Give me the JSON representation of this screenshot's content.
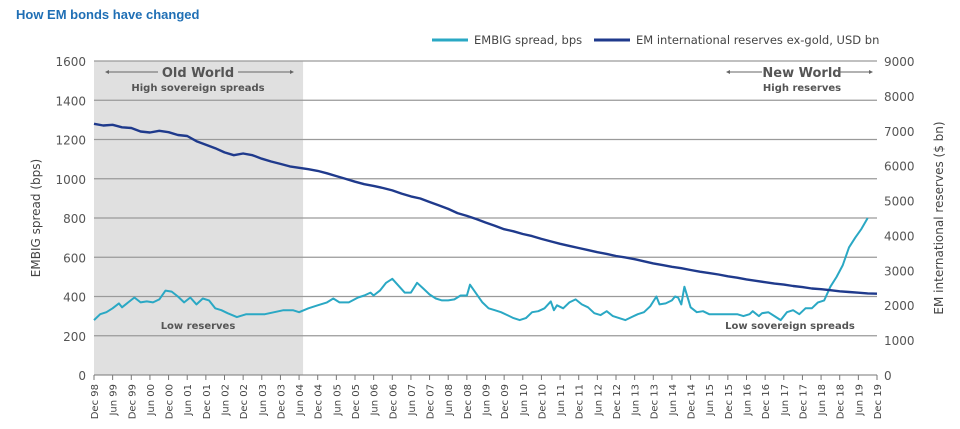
{
  "title": "How EM bonds have changed",
  "chart_data": {
    "type": "line",
    "title": "How EM bonds have changed",
    "xlabel": "",
    "ylabel": "EMBIG spread (bps)",
    "y2label": "EM international reserves ($ bn)",
    "ylim": [
      0,
      1600
    ],
    "y2lim": [
      0,
      9000
    ],
    "yticks": [
      0,
      200,
      400,
      600,
      800,
      1000,
      1200,
      1400,
      1600
    ],
    "y2ticks": [
      0,
      1000,
      2000,
      3000,
      4000,
      5000,
      6000,
      7000,
      8000,
      9000
    ],
    "grid": true,
    "legend_position": "top-right",
    "x_tick_labels": [
      "Dec 98",
      "Jun 99",
      "Dec 99",
      "Jun 00",
      "Dec 00",
      "Jun 01",
      "Dec 01",
      "Jun 02",
      "Dec 02",
      "Jun 03",
      "Dec 03",
      "Jun 04",
      "Dec 04",
      "Jun 05",
      "Dec 05",
      "Jun 06",
      "Dec 06",
      "Jun 07",
      "Dec 07",
      "Jun 08",
      "Dec 08",
      "Jun 09",
      "Dec 09",
      "Jun 10",
      "Dec 10",
      "Jun 11",
      "Dec 11",
      "Jun 12",
      "Dec 12",
      "Jun 13",
      "Dec 13",
      "Jun 14",
      "Dec 14",
      "Jun 15",
      "Dec 15",
      "Jun 16",
      "Dec 16",
      "Jun 17",
      "Dec 17",
      "Jun 18",
      "Dec 18",
      "Jun 19",
      "Dec 19"
    ],
    "x_unit": "months since Dec 98",
    "series": [
      {
        "name": "EMBIG spread, bps",
        "axis": "left",
        "color": "#2aa8c4",
        "points": [
          [
            0,
            280
          ],
          [
            2,
            310
          ],
          [
            4,
            320
          ],
          [
            6,
            340
          ],
          [
            8,
            365
          ],
          [
            9,
            345
          ],
          [
            11,
            370
          ],
          [
            13,
            395
          ],
          [
            15,
            370
          ],
          [
            17,
            375
          ],
          [
            19,
            370
          ],
          [
            21,
            385
          ],
          [
            23,
            430
          ],
          [
            25,
            425
          ],
          [
            27,
            400
          ],
          [
            29,
            370
          ],
          [
            31,
            395
          ],
          [
            33,
            360
          ],
          [
            35,
            390
          ],
          [
            37,
            380
          ],
          [
            39,
            340
          ],
          [
            41,
            330
          ],
          [
            43,
            315
          ],
          [
            46,
            295
          ],
          [
            49,
            310
          ],
          [
            52,
            310
          ],
          [
            55,
            310
          ],
          [
            58,
            320
          ],
          [
            61,
            330
          ],
          [
            64,
            330
          ],
          [
            66,
            320
          ],
          [
            69,
            340
          ],
          [
            72,
            355
          ],
          [
            75,
            370
          ],
          [
            77,
            390
          ],
          [
            79,
            370
          ],
          [
            82,
            370
          ],
          [
            85,
            395
          ],
          [
            87,
            405
          ],
          [
            89,
            420
          ],
          [
            90,
            405
          ],
          [
            92,
            430
          ],
          [
            94,
            470
          ],
          [
            96,
            490
          ],
          [
            98,
            455
          ],
          [
            100,
            420
          ],
          [
            102,
            420
          ],
          [
            104,
            470
          ],
          [
            106,
            440
          ],
          [
            108,
            410
          ],
          [
            110,
            390
          ],
          [
            112,
            380
          ],
          [
            114,
            380
          ],
          [
            116,
            385
          ],
          [
            118,
            405
          ],
          [
            120,
            405
          ],
          [
            121,
            460
          ],
          [
            123,
            415
          ],
          [
            125,
            370
          ],
          [
            127,
            340
          ],
          [
            129,
            330
          ],
          [
            131,
            320
          ],
          [
            133,
            305
          ],
          [
            135,
            290
          ],
          [
            137,
            280
          ],
          [
            139,
            290
          ],
          [
            141,
            320
          ],
          [
            143,
            325
          ],
          [
            145,
            340
          ],
          [
            147,
            375
          ],
          [
            148,
            330
          ],
          [
            149,
            355
          ],
          [
            151,
            340
          ],
          [
            153,
            370
          ],
          [
            155,
            385
          ],
          [
            157,
            360
          ],
          [
            159,
            345
          ],
          [
            161,
            315
          ],
          [
            163,
            305
          ],
          [
            165,
            325
          ],
          [
            167,
            300
          ],
          [
            169,
            290
          ],
          [
            171,
            280
          ],
          [
            173,
            295
          ],
          [
            175,
            310
          ],
          [
            177,
            320
          ],
          [
            179,
            350
          ],
          [
            181,
            400
          ],
          [
            182,
            360
          ],
          [
            184,
            365
          ],
          [
            186,
            380
          ],
          [
            187,
            400
          ],
          [
            188,
            395
          ],
          [
            189,
            360
          ],
          [
            190,
            450
          ],
          [
            192,
            345
          ],
          [
            194,
            320
          ],
          [
            196,
            325
          ],
          [
            198,
            310
          ],
          [
            201,
            310
          ],
          [
            204,
            310
          ],
          [
            207,
            310
          ],
          [
            209,
            300
          ],
          [
            211,
            310
          ],
          [
            212,
            325
          ],
          [
            214,
            300
          ],
          [
            215,
            315
          ],
          [
            217,
            320
          ],
          [
            219,
            300
          ],
          [
            221,
            280
          ],
          [
            223,
            320
          ],
          [
            225,
            330
          ],
          [
            227,
            310
          ],
          [
            229,
            340
          ],
          [
            231,
            340
          ],
          [
            233,
            370
          ],
          [
            235,
            380
          ],
          [
            237,
            450
          ],
          [
            239,
            500
          ],
          [
            241,
            560
          ],
          [
            243,
            650
          ],
          [
            245,
            700
          ],
          [
            247,
            745
          ],
          [
            249,
            800
          ]
        ]
      },
      {
        "name": "EM international reserves ex-gold, USD bn",
        "axis": "right",
        "color": "#1f3a8c",
        "points": [
          [
            0,
            7200
          ],
          [
            3,
            7150
          ],
          [
            6,
            7170
          ],
          [
            9,
            7100
          ],
          [
            12,
            7080
          ],
          [
            15,
            6980
          ],
          [
            18,
            6950
          ],
          [
            21,
            7000
          ],
          [
            24,
            6960
          ],
          [
            27,
            6880
          ],
          [
            30,
            6850
          ],
          [
            33,
            6700
          ],
          [
            36,
            6600
          ],
          [
            39,
            6500
          ],
          [
            42,
            6380
          ],
          [
            45,
            6300
          ],
          [
            48,
            6350
          ],
          [
            51,
            6300
          ],
          [
            54,
            6200
          ],
          [
            57,
            6120
          ],
          [
            60,
            6050
          ],
          [
            63,
            5980
          ],
          [
            66,
            5940
          ],
          [
            69,
            5900
          ],
          [
            72,
            5850
          ],
          [
            75,
            5780
          ],
          [
            78,
            5700
          ],
          [
            81,
            5620
          ],
          [
            84,
            5540
          ],
          [
            87,
            5470
          ],
          [
            90,
            5420
          ],
          [
            93,
            5360
          ],
          [
            96,
            5290
          ],
          [
            99,
            5200
          ],
          [
            102,
            5120
          ],
          [
            105,
            5060
          ],
          [
            108,
            4960
          ],
          [
            111,
            4860
          ],
          [
            114,
            4760
          ],
          [
            117,
            4640
          ],
          [
            120,
            4560
          ],
          [
            123,
            4470
          ],
          [
            126,
            4370
          ],
          [
            129,
            4280
          ],
          [
            132,
            4180
          ],
          [
            135,
            4120
          ],
          [
            138,
            4040
          ],
          [
            141,
            3980
          ],
          [
            144,
            3900
          ],
          [
            147,
            3830
          ],
          [
            150,
            3760
          ],
          [
            153,
            3700
          ],
          [
            156,
            3640
          ],
          [
            159,
            3580
          ],
          [
            162,
            3520
          ],
          [
            165,
            3470
          ],
          [
            168,
            3410
          ],
          [
            171,
            3370
          ],
          [
            174,
            3320
          ],
          [
            177,
            3260
          ],
          [
            180,
            3200
          ],
          [
            183,
            3150
          ],
          [
            186,
            3100
          ],
          [
            189,
            3060
          ],
          [
            192,
            3010
          ],
          [
            195,
            2960
          ],
          [
            198,
            2920
          ],
          [
            201,
            2880
          ],
          [
            204,
            2830
          ],
          [
            207,
            2790
          ],
          [
            210,
            2740
          ],
          [
            213,
            2700
          ],
          [
            216,
            2660
          ],
          [
            219,
            2620
          ],
          [
            222,
            2590
          ],
          [
            225,
            2550
          ],
          [
            228,
            2520
          ],
          [
            231,
            2480
          ],
          [
            234,
            2460
          ],
          [
            237,
            2430
          ],
          [
            240,
            2400
          ],
          [
            243,
            2380
          ],
          [
            246,
            2360
          ],
          [
            249,
            2340
          ],
          [
            252,
            2330
          ]
        ]
      }
    ],
    "annotations": [
      {
        "text": "Old World",
        "subtext": "High sovereign spreads",
        "span": [
          "Dec 98",
          "Jun 04"
        ],
        "shaded": true
      },
      {
        "text": "New World",
        "subtext": "High reserves",
        "span": [
          "Jun 15",
          "Dec 19"
        ],
        "shaded": false
      },
      {
        "text": "Low reserves",
        "position": "inside old-world region, near 230 bps"
      },
      {
        "text": "Low sovereign spreads",
        "position": "right side, near 1300 $bn"
      }
    ]
  },
  "legend": {
    "embig_label": "EMBIG spread, bps",
    "reserves_label": "EM international reserves ex-gold, USD bn"
  },
  "annotations": {
    "old_world": "Old World",
    "old_world_sub": "High sovereign spreads",
    "new_world": "New World",
    "new_world_sub": "High reserves",
    "low_reserves": "Low reserves",
    "low_spreads": "Low sovereign spreads"
  },
  "axes": {
    "left_title": "EMBIG spread (bps)",
    "right_title": "EM international reserves ($ bn)"
  }
}
